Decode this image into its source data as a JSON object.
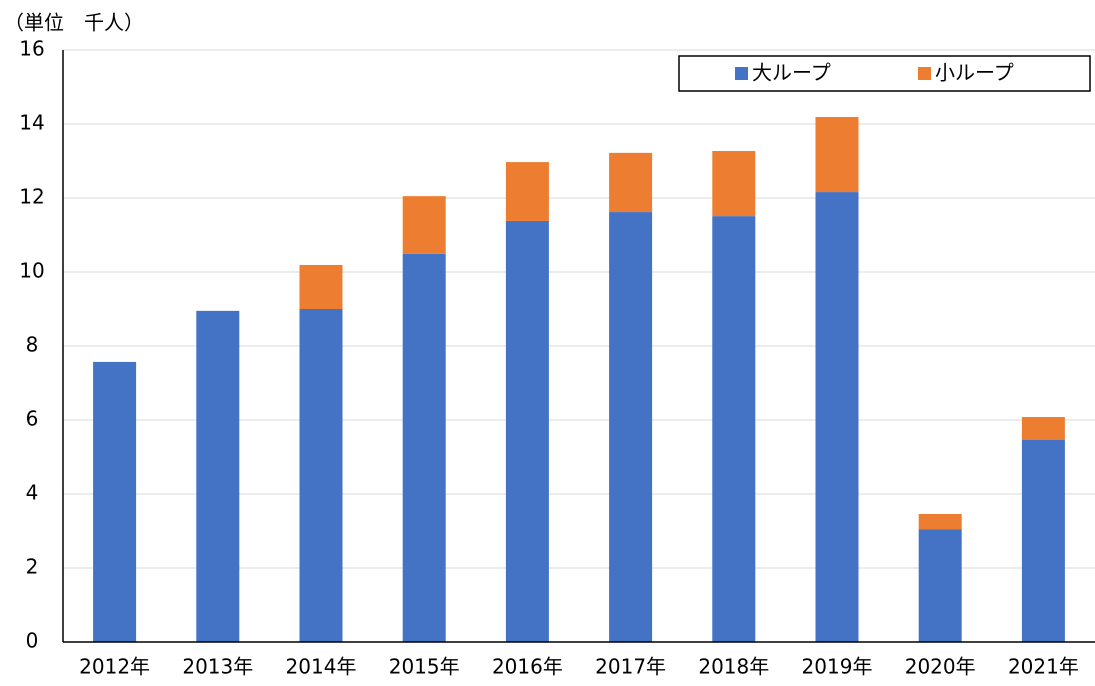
{
  "chart_data": {
    "type": "stacked_bar",
    "subtitle": "（単位　千人）",
    "categories": [
      "2012年",
      "2013年",
      "2014年",
      "2015年",
      "2016年",
      "2017年",
      "2018年",
      "2019年",
      "2020年",
      "2021年"
    ],
    "series": [
      {
        "name": "大ループ",
        "color": "#4472c4",
        "values": [
          7.57,
          8.95,
          9.0,
          10.49,
          11.38,
          11.62,
          11.51,
          12.16,
          3.05,
          5.46
        ]
      },
      {
        "name": "小ループ",
        "color": "#ed7d31",
        "values": [
          0,
          0,
          1.19,
          1.56,
          1.59,
          1.6,
          1.76,
          2.03,
          0.41,
          0.62
        ]
      }
    ],
    "ylim": [
      0,
      16
    ],
    "yticks": [
      0,
      2,
      4,
      6,
      8,
      10,
      12,
      14,
      16
    ],
    "grid": true
  }
}
